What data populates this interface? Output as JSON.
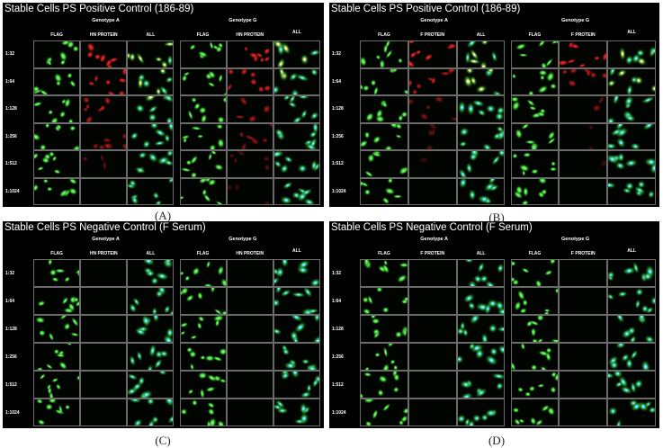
{
  "figure": {
    "panels": [
      {
        "title": "Stable Cells PS Positive Control (186-89)",
        "caption": "(A)",
        "group_left": "Genotype A",
        "group_right": "Genotype G",
        "columns": [
          "FLAG",
          "HN PROTEIN",
          "ALL",
          "FLAG",
          "HN PROTEIN",
          "ALL"
        ],
        "rows": [
          "1:32",
          "1:64",
          "1:128",
          "1:256",
          "1:512",
          "1:1024"
        ],
        "merge_color": "#33d9e8",
        "protein_signal": [
          0.9,
          0.75,
          0.55,
          0.4,
          0.25,
          0.1
        ]
      },
      {
        "title": "Stable Cells PS Positive Control (186-89)",
        "caption": "(B)",
        "group_left": "Genotype A",
        "group_right": "Genotype G",
        "columns": [
          "FLAG",
          "F PROTEIN",
          "ALL",
          "FLAG",
          "F PROTEIN",
          "ALL"
        ],
        "rows": [
          "1:32",
          "1:64",
          "1:128",
          "1:256",
          "1:512",
          "1:1024"
        ],
        "merge_color": "#33d9e8",
        "protein_signal": [
          0.9,
          0.6,
          0.35,
          0.2,
          0.1,
          0.05
        ]
      },
      {
        "title": "Stable Cells PS Negative Control (F Serum)",
        "caption": "(C)",
        "group_left": "Genotype A",
        "group_right": "Genotype G",
        "columns": [
          "FLAG",
          "HN PROTEIN",
          "ALL",
          "FLAG",
          "HN PROTEIN",
          "ALL"
        ],
        "rows": [
          "1:32",
          "1:64",
          "1:128",
          "1:256",
          "1:512",
          "1:1024"
        ],
        "merge_color": "#33d9e8",
        "protein_signal": [
          0,
          0,
          0,
          0,
          0,
          0
        ]
      },
      {
        "title": "Stable Cells PS Negative Control (F Serum)",
        "caption": "(D)",
        "group_left": "Genotype A",
        "group_right": "Genotype G",
        "columns": [
          "FLAG",
          "F PROTEIN",
          "ALL",
          "FLAG",
          "F PROTEIN",
          "ALL"
        ],
        "rows": [
          "1:32",
          "1:64",
          "1:128",
          "1:256",
          "1:512",
          "1:1024"
        ],
        "merge_color": "#2ed0a0",
        "protein_signal": [
          0,
          0,
          0,
          0,
          0,
          0
        ]
      }
    ],
    "colors": {
      "background": "#000000",
      "flag": "#3fd13a",
      "protein": "#b01818",
      "merge_nucleus": "#35e0f0",
      "merge_bright": "#fff2a0",
      "cell_border": "#6b6b6b"
    }
  }
}
